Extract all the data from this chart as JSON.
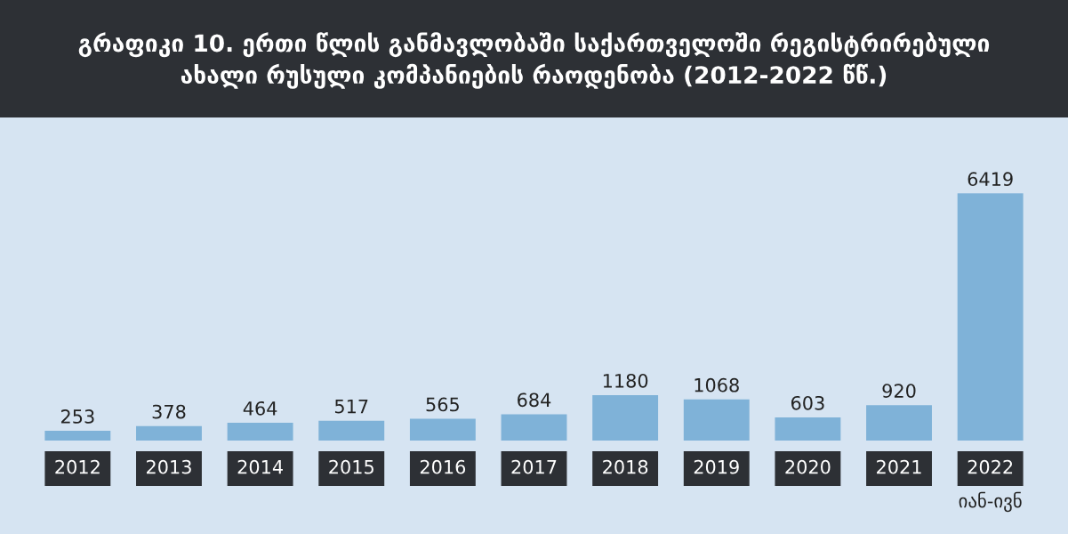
{
  "chart_data": {
    "type": "bar",
    "title": "გრაფიკი 10. ერთი წლის განმავლობაში საქართველოში რეგისტრირებული\nახალი რუსული კომპანიების რაოდენობა (2012-2022 წწ.)",
    "categories": [
      "2012",
      "2013",
      "2014",
      "2015",
      "2016",
      "2017",
      "2018",
      "2019",
      "2020",
      "2021",
      "2022\nიან-ივნ"
    ],
    "values": [
      253,
      378,
      464,
      517,
      565,
      684,
      1180,
      1068,
      603,
      920,
      6419
    ],
    "color": "#7fb2d8",
    "data_labels": true
  }
}
